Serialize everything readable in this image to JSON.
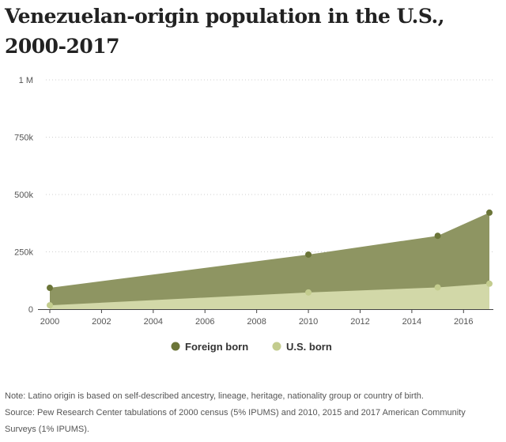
{
  "chart_data": {
    "type": "area",
    "title": "Venezuelan-origin population in the U.S., 2000-2017",
    "x": [
      2000,
      2010,
      2015,
      2017
    ],
    "series": [
      {
        "name": "Foreign born",
        "values": [
          93000,
          238000,
          320000,
          421000
        ],
        "color": "#6b7538",
        "fill": "#8e9562"
      },
      {
        "name": "U.S. born",
        "values": [
          17000,
          73000,
          95000,
          111000
        ],
        "color": "#c3cc8e",
        "fill": "#d2d8a8"
      }
    ],
    "stacked": false,
    "xlim": [
      2000,
      2017
    ],
    "ylim": [
      0,
      1000000
    ],
    "x_ticks": [
      2000,
      2002,
      2004,
      2006,
      2008,
      2010,
      2012,
      2014,
      2016
    ],
    "y_ticks": [
      {
        "value": 0,
        "label": "0"
      },
      {
        "value": 250000,
        "label": "250k"
      },
      {
        "value": 500000,
        "label": "500k"
      },
      {
        "value": 750000,
        "label": "750k"
      },
      {
        "value": 1000000,
        "label": "1 M"
      }
    ],
    "grid": true,
    "legend_position": "bottom"
  },
  "notes": {
    "note": "Note: Latino origin is based on self-described ancestry, lineage, heritage, nationality group or country of birth.",
    "source_line1": "Source: Pew Research Center tabulations of 2000 census (5% IPUMS) and 2010, 2015 and 2017 American Community",
    "source_line2": "Surveys (1% IPUMS)."
  }
}
